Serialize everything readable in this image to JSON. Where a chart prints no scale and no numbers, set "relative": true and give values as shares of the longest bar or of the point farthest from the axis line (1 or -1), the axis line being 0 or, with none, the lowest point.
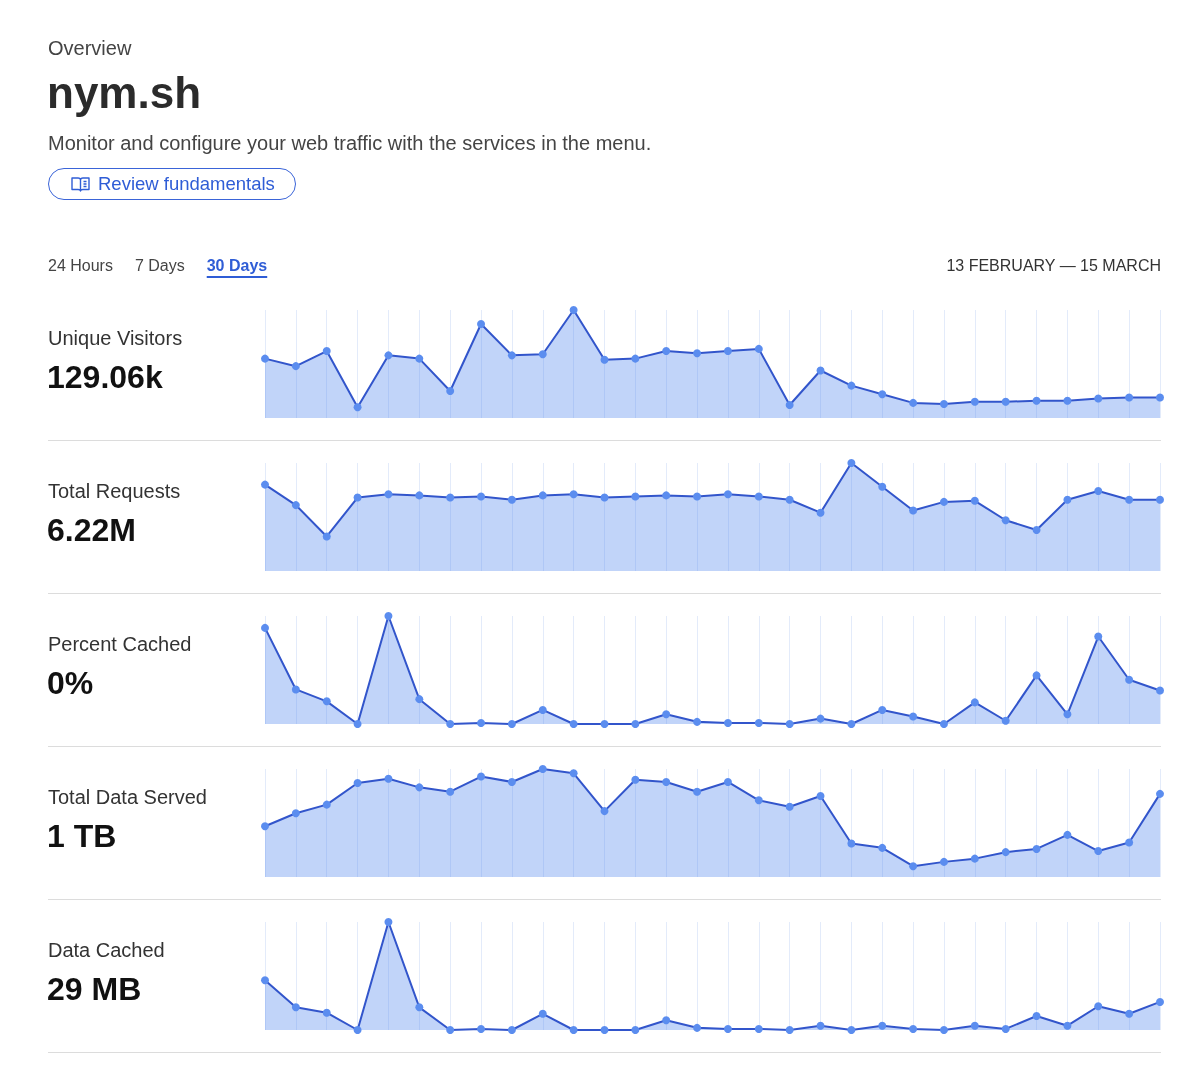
{
  "chart_data": [
    {
      "type": "other",
      "title": "nym.sh",
      "subtitle": "Monitor and configure your web traffic with the services in the menu.",
      "annotations": [
        "Overview",
        "Review fundamentals",
        "24 Hours",
        "7 Days",
        "30 Days",
        "13 FEBRUARY — 15 MARCH"
      ]
    },
    {
      "type": "area",
      "title": "Unique Visitors",
      "subtitle": "129.06k",
      "relative": true,
      "categories": [
        null,
        null,
        null,
        null,
        null,
        null,
        null,
        null,
        null,
        null,
        null,
        null,
        null,
        null,
        null,
        null,
        null,
        null,
        null,
        null,
        null,
        null,
        null,
        null,
        null,
        null,
        null,
        null,
        null,
        null
      ],
      "values": [
        0.55,
        0.48,
        0.62,
        0.1,
        0.58,
        0.55,
        0.25,
        0.87,
        0.58,
        0.59,
        1,
        0.54,
        0.55,
        0.62,
        0.6,
        0.62,
        0.64,
        0.12,
        0.44,
        0.3,
        0.22,
        0.14,
        0.13,
        0.15,
        0.15,
        0.16,
        0.16,
        0.18,
        0.19,
        0.19
      ],
      "color": "#5b8def",
      "marker": "circle",
      "line_style": "solid",
      "grid": "x"
    },
    {
      "type": "area",
      "title": "Total Requests",
      "subtitle": "6.22M",
      "relative": true,
      "categories": [
        null,
        null,
        null,
        null,
        null,
        null,
        null,
        null,
        null,
        null,
        null,
        null,
        null,
        null,
        null,
        null,
        null,
        null,
        null,
        null,
        null,
        null,
        null,
        null,
        null,
        null,
        null,
        null,
        null,
        null
      ],
      "values": [
        0.8,
        0.61,
        0.32,
        0.68,
        0.71,
        0.7,
        0.68,
        0.69,
        0.66,
        0.7,
        0.71,
        0.68,
        0.69,
        0.7,
        0.69,
        0.71,
        0.69,
        0.66,
        0.54,
        1,
        0.78,
        0.56,
        0.64,
        0.65,
        0.47,
        0.38,
        0.66,
        0.74,
        0.66,
        0.66
      ],
      "color": "#5b8def",
      "marker": "circle",
      "line_style": "solid",
      "grid": "x"
    },
    {
      "type": "area",
      "title": "Percent Cached",
      "subtitle": "0%",
      "relative": true,
      "categories": [
        null,
        null,
        null,
        null,
        null,
        null,
        null,
        null,
        null,
        null,
        null,
        null,
        null,
        null,
        null,
        null,
        null,
        null,
        null,
        null,
        null,
        null,
        null,
        null,
        null,
        null,
        null,
        null,
        null,
        null
      ],
      "values": [
        0.89,
        0.32,
        0.21,
        0,
        1,
        0.23,
        0,
        0.01,
        0,
        0.13,
        0,
        0,
        0,
        0.09,
        0.02,
        0.01,
        0.01,
        0,
        0.05,
        0,
        0.13,
        0.07,
        0,
        0.2,
        0.03,
        0.45,
        0.09,
        0.81,
        0.41,
        0.31
      ],
      "color": "#5b8def",
      "marker": "circle",
      "line_style": "solid",
      "grid": "x"
    },
    {
      "type": "area",
      "title": "Total Data Served",
      "subtitle": "1 TB",
      "relative": true,
      "categories": [
        null,
        null,
        null,
        null,
        null,
        null,
        null,
        null,
        null,
        null,
        null,
        null,
        null,
        null,
        null,
        null,
        null,
        null,
        null,
        null,
        null,
        null,
        null,
        null,
        null,
        null,
        null,
        null,
        null,
        null
      ],
      "values": [
        0.47,
        0.59,
        0.67,
        0.87,
        0.91,
        0.83,
        0.79,
        0.93,
        0.88,
        1,
        0.96,
        0.61,
        0.9,
        0.88,
        0.79,
        0.88,
        0.71,
        0.65,
        0.75,
        0.31,
        0.27,
        0.1,
        0.14,
        0.17,
        0.23,
        0.26,
        0.39,
        0.24,
        0.32,
        0.77
      ],
      "color": "#5b8def",
      "marker": "circle",
      "line_style": "solid",
      "grid": "x"
    },
    {
      "type": "area",
      "title": "Data Cached",
      "subtitle": "29 MB",
      "relative": true,
      "categories": [
        null,
        null,
        null,
        null,
        null,
        null,
        null,
        null,
        null,
        null,
        null,
        null,
        null,
        null,
        null,
        null,
        null,
        null,
        null,
        null,
        null,
        null,
        null,
        null,
        null,
        null,
        null,
        null,
        null,
        null
      ],
      "values": [
        0.46,
        0.21,
        0.16,
        0,
        1,
        0.21,
        0,
        0.01,
        0,
        0.15,
        0,
        0,
        0,
        0.09,
        0.02,
        0.01,
        0.01,
        0,
        0.04,
        0,
        0.04,
        0.01,
        0,
        0.04,
        0.01,
        0.13,
        0.04,
        0.22,
        0.15,
        0.26
      ],
      "color": "#5b8def",
      "marker": "circle",
      "line_style": "solid",
      "grid": "x"
    }
  ]
}
